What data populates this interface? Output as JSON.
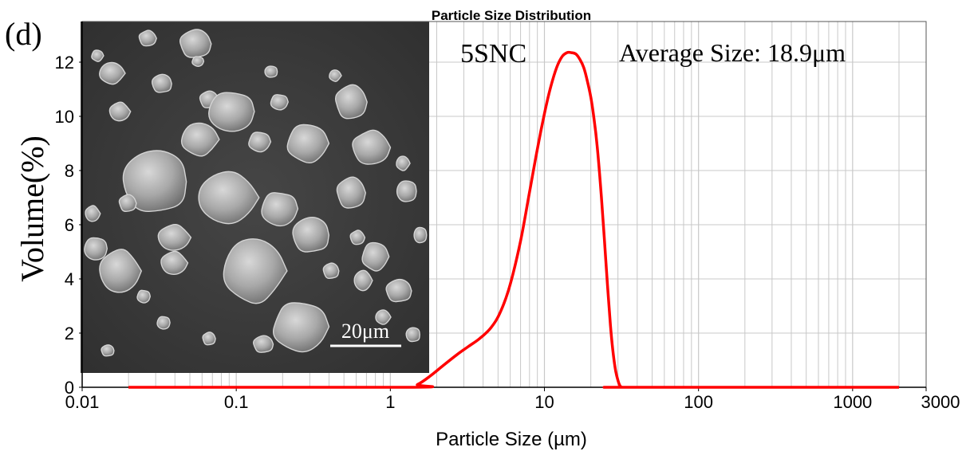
{
  "panel_label": "(d)",
  "chart_data": {
    "type": "line",
    "title": "Particle Size Distribution",
    "xlabel": "Particle Size (µm)",
    "ylabel": "Volume(%)",
    "xscale": "log",
    "xlim": [
      0.01,
      3000
    ],
    "ylim": [
      0,
      13.5
    ],
    "x_ticks": [
      0.01,
      0.1,
      1,
      10,
      100,
      1000,
      3000
    ],
    "x_tick_labels": [
      "0.01",
      "0.1",
      "1",
      "10",
      "100",
      "1000",
      "3000"
    ],
    "y_ticks": [
      0,
      2,
      4,
      6,
      8,
      10,
      12
    ],
    "y_tick_labels": [
      "0",
      "2",
      "4",
      "6",
      "8",
      "10",
      "12"
    ],
    "grid": true,
    "annotations": {
      "sample": "5SNC",
      "average_size": "Average Size: 18.9μm"
    },
    "series": [
      {
        "name": "5SNC",
        "color": "#ff0000",
        "x": [
          0.02,
          1.3,
          1.5,
          1.8,
          2.2,
          2.7,
          3.2,
          3.8,
          4.5,
          5.2,
          6.0,
          7.0,
          8.0,
          9.0,
          10.0,
          11.0,
          12.0,
          13.0,
          14.0,
          15.0,
          16.0,
          17.0,
          18.0,
          19.0,
          20.0,
          21.0,
          22.0,
          23.0,
          24.0,
          25.0,
          26.0,
          27.0,
          28.0,
          29.0,
          30.0,
          31.0,
          32.0,
          33.0,
          34.0,
          2000
        ],
        "y": [
          0,
          0,
          0.1,
          0.4,
          0.8,
          1.2,
          1.5,
          1.8,
          2.2,
          2.8,
          3.8,
          5.4,
          7.2,
          8.8,
          10.1,
          11.1,
          11.8,
          12.2,
          12.35,
          12.35,
          12.3,
          12.1,
          11.8,
          11.3,
          10.7,
          9.9,
          8.9,
          7.6,
          6.2,
          4.7,
          3.3,
          2.1,
          1.2,
          0.6,
          0.25,
          0.05,
          0.0,
          0,
          0,
          0
        ]
      }
    ]
  },
  "inset": {
    "description_label": "SEM micrograph",
    "scale_bar": "20μm"
  },
  "colors": {
    "curve": "#ff0000",
    "grid": "#c8c8c8",
    "axis": "#000000",
    "inset_bg": "#3b3b3b",
    "particle": "#9a9a9a"
  }
}
